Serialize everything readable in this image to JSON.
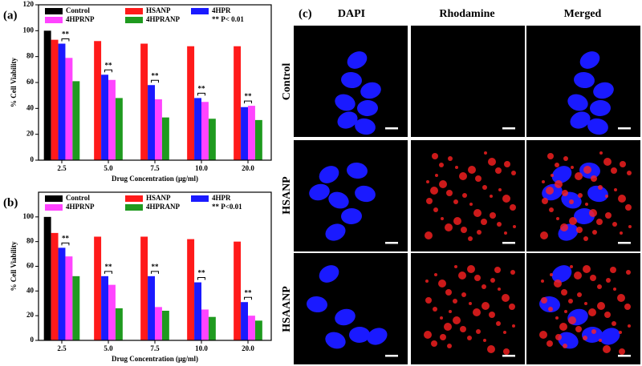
{
  "chart_data": [
    {
      "type": "bar",
      "panel_label": "(a)",
      "x_label": "Drug Concentration (μg/ml)",
      "y_label": "% Cell Viability",
      "annotation": "** P< 0.01",
      "significance": "**",
      "categories": [
        "2.5",
        "5.0",
        "7.5",
        "10.0",
        "20.0"
      ],
      "series": [
        {
          "name": "Control",
          "color": "#000000",
          "values": [
            100,
            null,
            null,
            null,
            null
          ]
        },
        {
          "name": "HSANP",
          "color": "#ff1a1a",
          "values": [
            93,
            92,
            90,
            88,
            88
          ]
        },
        {
          "name": "4HPR",
          "color": "#1a1aff",
          "values": [
            90,
            66,
            58,
            48,
            41
          ]
        },
        {
          "name": "4HPRNP",
          "color": "#ff44ff",
          "values": [
            79,
            62,
            47,
            45,
            42
          ]
        },
        {
          "name": "4HPRANP",
          "color": "#1f9a1f",
          "values": [
            61,
            48,
            33,
            32,
            31
          ]
        }
      ],
      "ylim": [
        0,
        120
      ],
      "yticks": [
        0,
        20,
        40,
        60,
        80,
        100,
        120
      ]
    },
    {
      "type": "bar",
      "panel_label": "(b)",
      "x_label": "Drug Concentration (μg/ml)",
      "y_label": "% Cell Viability",
      "annotation": "** P<0.01",
      "significance": "**",
      "categories": [
        "2.5",
        "5.0",
        "7.5",
        "10.0",
        "20.0"
      ],
      "series": [
        {
          "name": "Control",
          "color": "#000000",
          "values": [
            100,
            null,
            null,
            null,
            null
          ]
        },
        {
          "name": "HSANP",
          "color": "#ff1a1a",
          "values": [
            87,
            84,
            84,
            82,
            80
          ]
        },
        {
          "name": "4HPR",
          "color": "#1a1aff",
          "values": [
            75,
            52,
            52,
            47,
            31
          ]
        },
        {
          "name": "4HPRNP",
          "color": "#ff44ff",
          "values": [
            68,
            45,
            27,
            25,
            20
          ]
        },
        {
          "name": "4HPRANP",
          "color": "#1f9a1f",
          "values": [
            52,
            26,
            24,
            19,
            16
          ]
        }
      ],
      "ylim": [
        0,
        120
      ],
      "yticks": [
        0,
        20,
        40,
        60,
        80,
        100
      ]
    }
  ],
  "panel_c": {
    "label": "(c)",
    "columns": [
      "DAPI",
      "Rhodamine",
      "Merged"
    ],
    "rows": [
      "Control",
      "HSANP",
      "HSAANP"
    ]
  }
}
